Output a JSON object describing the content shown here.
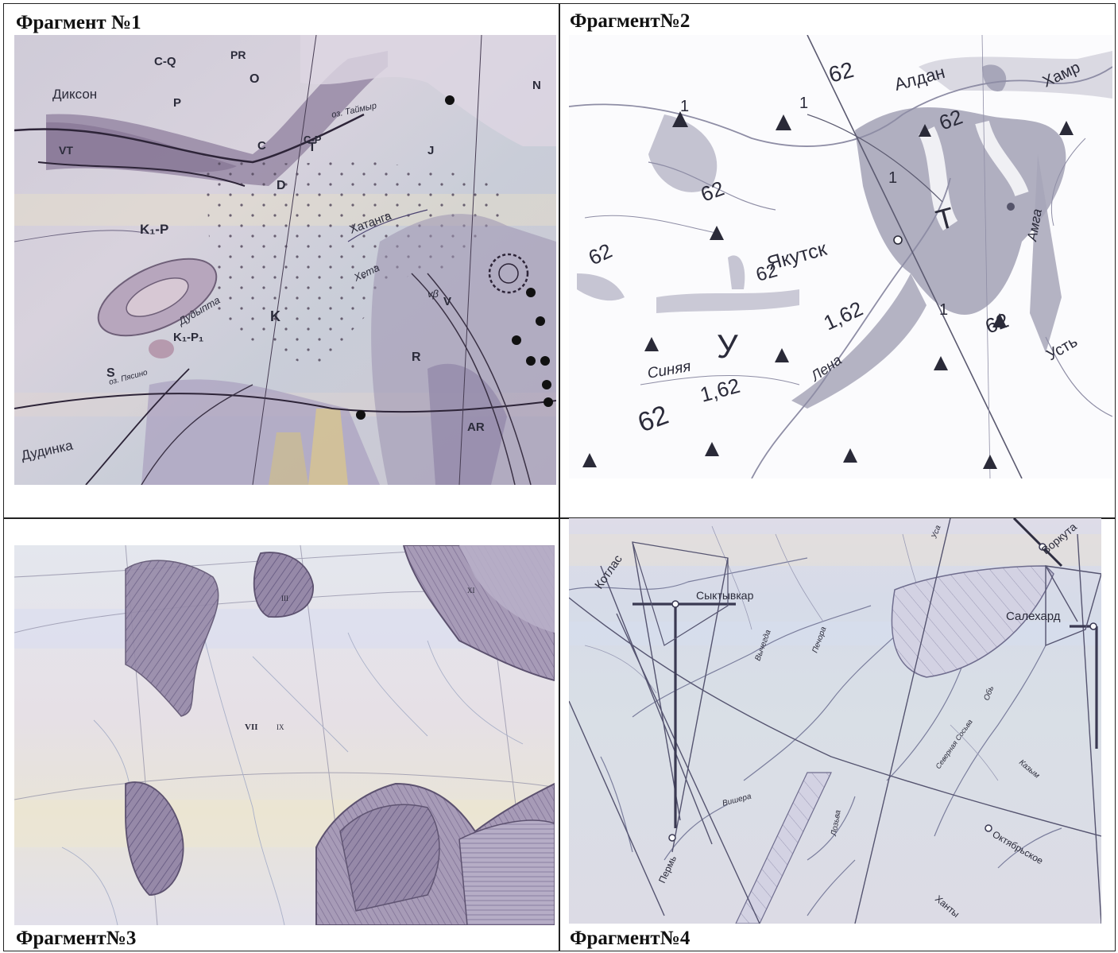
{
  "captions": {
    "fragment1": "Фрагмент №1",
    "fragment2": "Фрагмент№2",
    "fragment3": "Фрагмент№3",
    "fragment4": "Фрагмент№4"
  },
  "fragment1": {
    "places": [
      "Диксон",
      "Хатанга",
      "Дудинка",
      "Хета",
      "Дудыпта",
      "оз. Таймыр",
      "оз. Пясино"
    ],
    "symbols": [
      "C-Q",
      "P",
      "PR",
      "O",
      "T",
      "K",
      "J",
      "N",
      "V",
      "VT",
      "C",
      "C-P",
      "D",
      "K₁-P",
      "K₁-P₁",
      "S",
      "R",
      "AR",
      "vβ"
    ]
  },
  "fragment2": {
    "places": [
      "Алдан",
      "Якутск",
      "Лена",
      "Синяя",
      "Амга",
      "Хамр",
      "Усть"
    ],
    "region_letters": [
      "Т",
      "У"
    ],
    "index_labels": [
      "62",
      "1,62",
      "1"
    ]
  },
  "fragment3": {
    "zone_labels": [
      "VII",
      "III",
      "IX",
      "XI"
    ]
  },
  "fragment4": {
    "places": [
      "Котлас",
      "Сыктывкар",
      "Воркута",
      "Салехард",
      "Печора",
      "Вычегда",
      "Вишера",
      "Пермь",
      "Октябрьское",
      "Ханты",
      "Лозьва",
      "Северная Сосьва",
      "Обь",
      "Уса",
      "Казым"
    ]
  }
}
